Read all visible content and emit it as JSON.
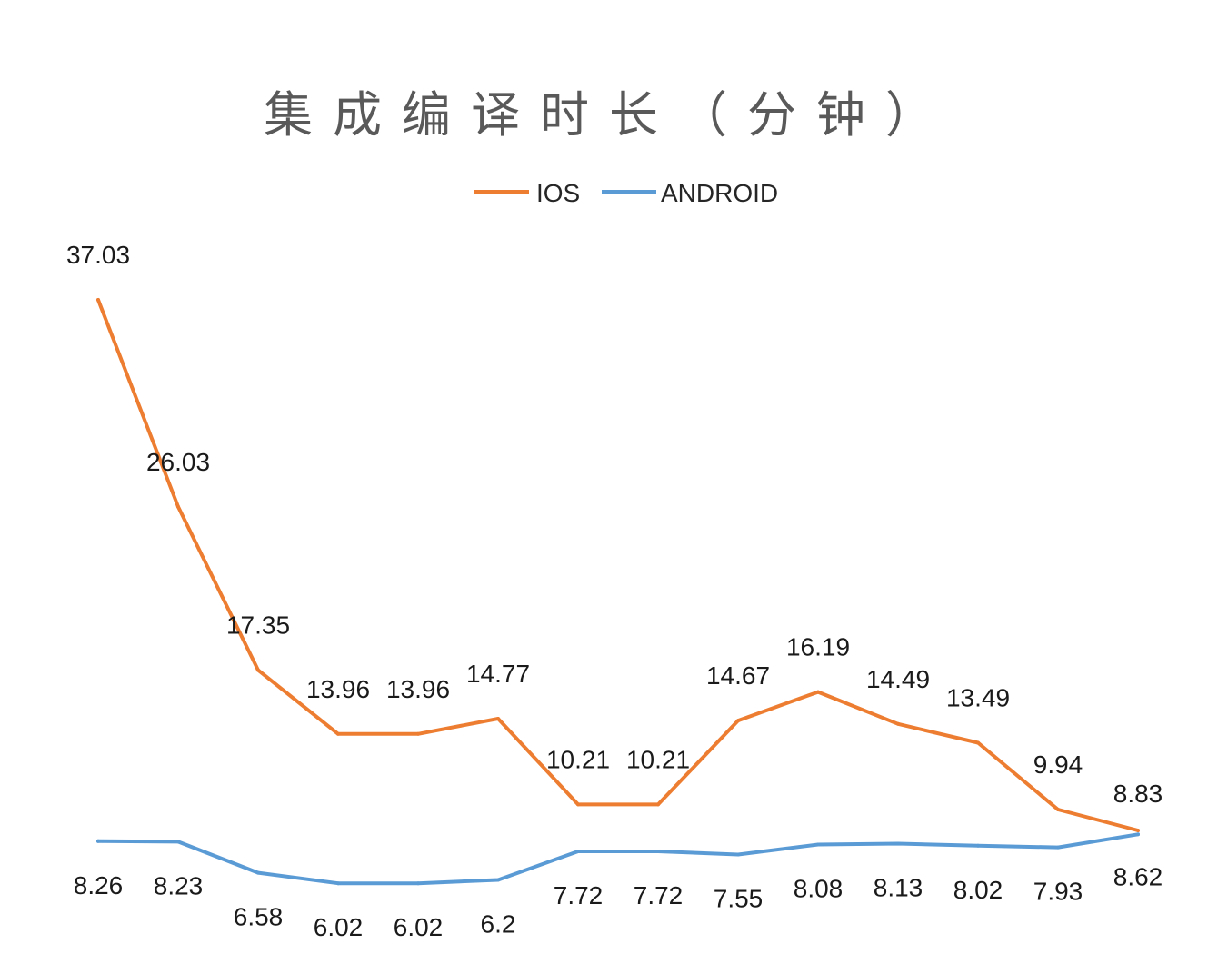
{
  "chart_data": {
    "type": "line",
    "title": "集成编译时长（分钟）",
    "legend_position": "top",
    "grid": false,
    "show_axes": false,
    "ylim": [
      0,
      40
    ],
    "x": [
      1,
      2,
      3,
      4,
      5,
      6,
      7,
      8,
      9,
      10,
      11,
      12,
      13,
      14
    ],
    "series": [
      {
        "name": "IOS",
        "color": "#ED7D31",
        "values": [
          37.03,
          26.03,
          17.35,
          13.96,
          13.96,
          14.77,
          10.21,
          10.21,
          14.67,
          16.19,
          14.49,
          13.49,
          9.94,
          8.83
        ],
        "labels": [
          "37.03",
          "26.03",
          "17.35",
          "13.96",
          "13.96",
          "14.77",
          "10.21",
          "10.21",
          "14.67",
          "16.19",
          "14.49",
          "13.49",
          "9.94",
          "8.83"
        ]
      },
      {
        "name": "ANDROID",
        "color": "#5B9BD5",
        "values": [
          8.26,
          8.23,
          6.58,
          6.02,
          6.02,
          6.2,
          7.72,
          7.72,
          7.55,
          8.08,
          8.13,
          8.02,
          7.93,
          8.62
        ],
        "labels": [
          "8.26",
          "8.23",
          "6.58",
          "6.02",
          "6.02",
          "6.2",
          "7.72",
          "7.72",
          "7.55",
          "8.08",
          "8.13",
          "8.02",
          "7.93",
          "8.62"
        ]
      }
    ]
  }
}
